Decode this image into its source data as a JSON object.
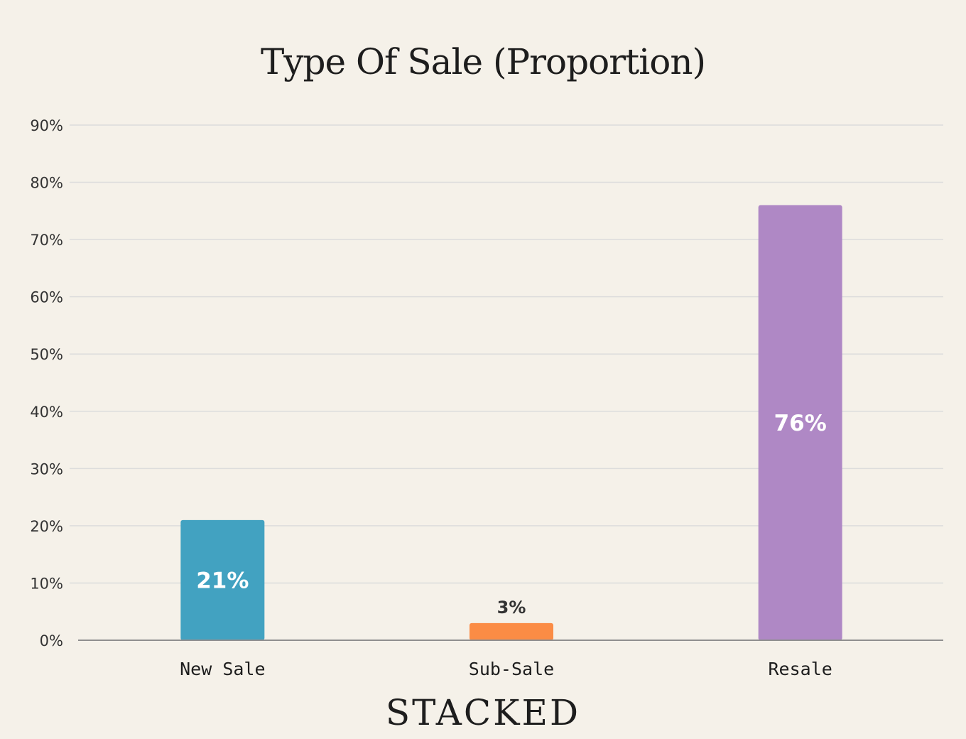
{
  "chart_data": {
    "type": "bar",
    "title": "Type Of Sale (Proportion)",
    "categories": [
      "New Sale",
      "Sub-Sale",
      "Resale"
    ],
    "values": [
      21,
      3,
      76
    ],
    "value_labels": [
      "21%",
      "3%",
      "76%"
    ],
    "colors": [
      "#42a2c1",
      "#fb8c45",
      "#af88c5"
    ],
    "ylim": [
      0,
      90
    ],
    "yticks": [
      0,
      10,
      20,
      30,
      40,
      50,
      60,
      70,
      80,
      90
    ],
    "ytick_labels": [
      "0%",
      "10%",
      "20%",
      "30%",
      "40%",
      "50%",
      "60%",
      "70%",
      "80%",
      "90%"
    ],
    "xlabel": "",
    "ylabel": "",
    "grid": true
  },
  "brand": "STACKED"
}
